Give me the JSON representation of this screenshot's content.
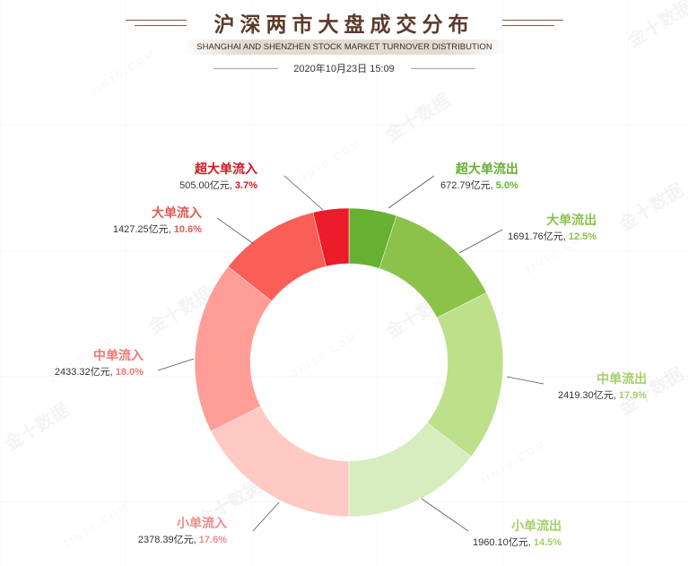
{
  "header": {
    "title": "沪深两市大盘成交分布",
    "subtitle": "SHANGHAI AND SHENZHEN STOCK MARKET TURNOVER DISTRIBUTION",
    "datetime": "2020年10月23日 15:09"
  },
  "watermark": {
    "cn": "金十数据",
    "en": "JIN10.COM"
  },
  "chart_data": {
    "type": "pie",
    "unit": "亿元",
    "slices": [
      {
        "label": "超大单流出",
        "value": 672.79,
        "value_text": "672.79亿元",
        "pct_text": "5.0%",
        "color": "#66b032",
        "pct_color": "#66b032"
      },
      {
        "label": "大单流出",
        "value": 1691.76,
        "value_text": "1691.76亿元",
        "pct_text": "12.5%",
        "color": "#8bc34a",
        "pct_color": "#8bc34a"
      },
      {
        "label": "中单流出",
        "value": 2419.3,
        "value_text": "2419.30亿元",
        "pct_text": "17.9%",
        "color": "#bde08a",
        "pct_color": "#a5cf6e"
      },
      {
        "label": "小单流出",
        "value": 1960.1,
        "value_text": "1960.10亿元",
        "pct_text": "14.5%",
        "color": "#d7ecbf",
        "pct_color": "#a5cf6e"
      },
      {
        "label": "小单流入",
        "value": 2378.39,
        "value_text": "2378.39亿元",
        "pct_text": "17.6%",
        "color": "#ffc9c4",
        "pct_color": "#ee8c88"
      },
      {
        "label": "中单流入",
        "value": 2433.32,
        "value_text": "2433.32亿元",
        "pct_text": "18.0%",
        "color": "#ff9d96",
        "pct_color": "#ee7a74"
      },
      {
        "label": "大单流入",
        "value": 1427.25,
        "value_text": "1427.25亿元",
        "pct_text": "10.6%",
        "color": "#f95f56",
        "pct_color": "#e05a52"
      },
      {
        "label": "超大单流入",
        "value": 505.0,
        "value_text": "505.00亿元",
        "pct_text": "3.7%",
        "color": "#ed1c2b",
        "pct_color": "#d0161f"
      }
    ]
  }
}
